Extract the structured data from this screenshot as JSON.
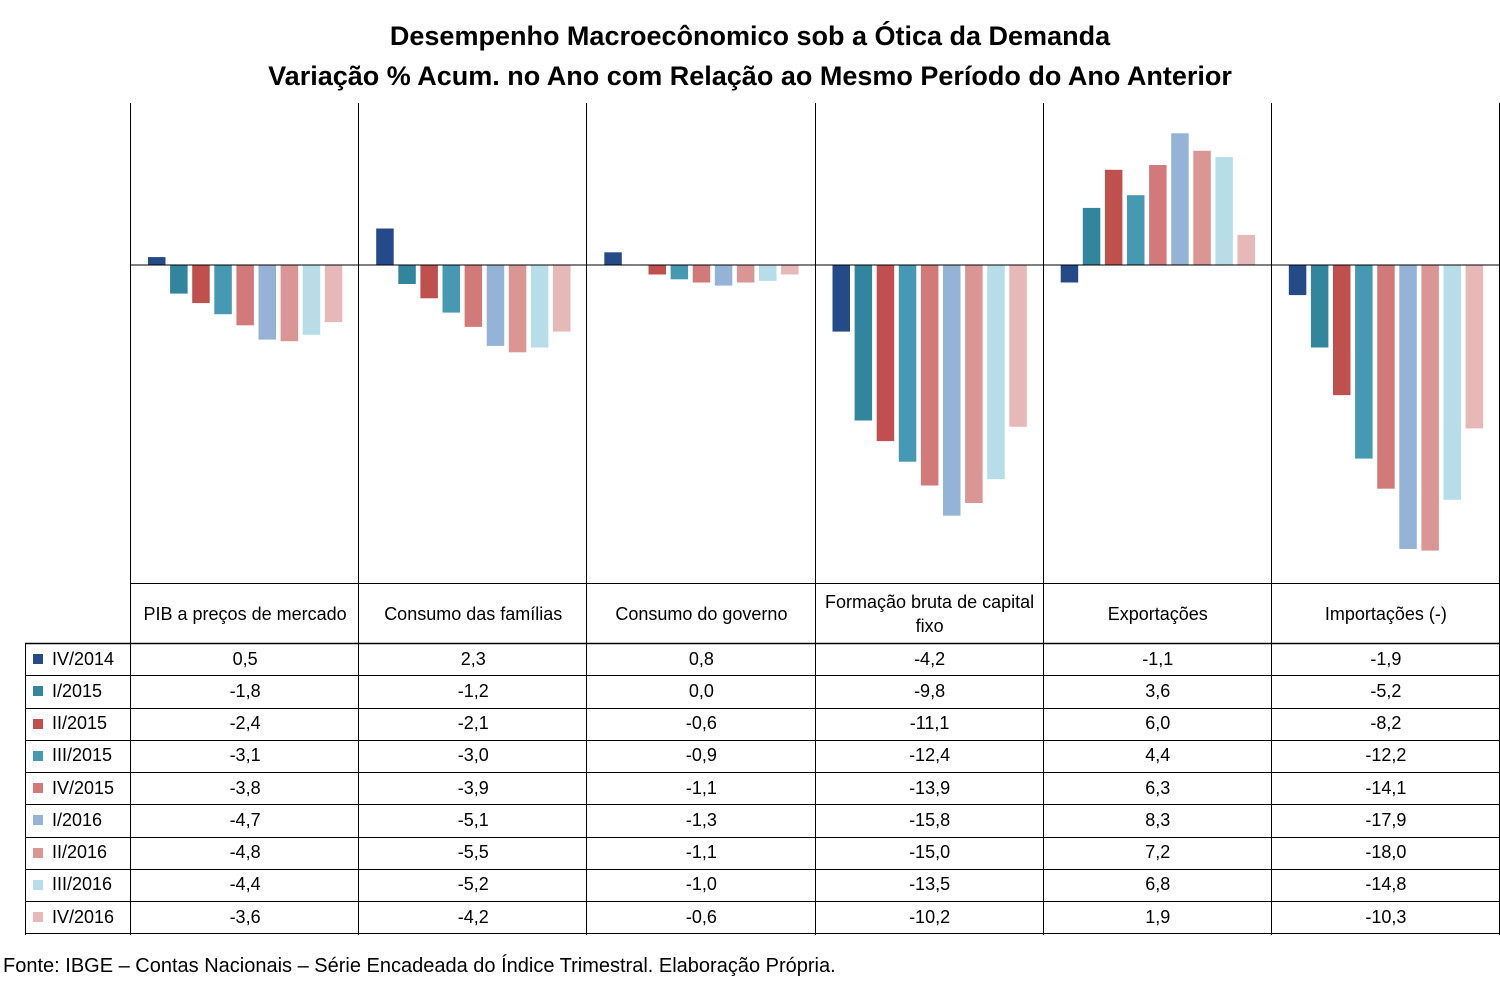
{
  "title": "Desempenho Macroecônomico sob a Ótica da Demanda",
  "subtitle": "Variação % Acum. no Ano com Relação ao Mesmo Período do Ano Anterior",
  "source": "Fonte: IBGE – Contas Nacionais – Série Encadeada do Índice Trimestral. Elaboração Própria.",
  "chart_data": {
    "type": "bar",
    "title": "Desempenho Macroecônomico sob a Ótica da Demanda",
    "subtitle": "Variação % Acum. no Ano com Relação ao Mesmo Período do Ano Anterior",
    "categories": [
      "PIB a preços de mercado",
      "Consumo das famílias",
      "Consumo do governo",
      "Formação bruta de capital fixo",
      "Exportações",
      "Importações (-)"
    ],
    "ylim": [
      -18.5,
      8.5
    ],
    "grid": false,
    "legend": "left (data table)",
    "series": [
      {
        "name": "IV/2014",
        "color": "#244b87",
        "values": [
          0.5,
          2.3,
          0.8,
          -4.2,
          -1.1,
          -1.9
        ],
        "labels": [
          "0,5",
          "2,3",
          "0,8",
          "-4,2",
          "-1,1",
          "-1,9"
        ]
      },
      {
        "name": "I/2015",
        "color": "#31859c",
        "values": [
          -1.8,
          -1.2,
          0.0,
          -9.8,
          3.6,
          -5.2
        ],
        "labels": [
          "-1,8",
          "-1,2",
          "0,0",
          "-9,8",
          "3,6",
          "-5,2"
        ]
      },
      {
        "name": "II/2015",
        "color": "#c0504d",
        "values": [
          -2.4,
          -2.1,
          -0.6,
          -11.1,
          6.0,
          -8.2
        ],
        "labels": [
          "-2,4",
          "-2,1",
          "-0,6",
          "-11,1",
          "6,0",
          "-8,2"
        ]
      },
      {
        "name": "III/2015",
        "color": "#4599b3",
        "values": [
          -3.1,
          -3.0,
          -0.9,
          -12.4,
          4.4,
          -12.2
        ],
        "labels": [
          "-3,1",
          "-3,0",
          "-0,9",
          "-12,4",
          "4,4",
          "-12,2"
        ]
      },
      {
        "name": "IV/2015",
        "color": "#d27a7a",
        "values": [
          -3.8,
          -3.9,
          -1.1,
          -13.9,
          6.3,
          -14.1
        ],
        "labels": [
          "-3,8",
          "-3,9",
          "-1,1",
          "-13,9",
          "6,3",
          "-14,1"
        ]
      },
      {
        "name": "I/2016",
        "color": "#95b3d7",
        "values": [
          -4.7,
          -5.1,
          -1.3,
          -15.8,
          8.3,
          -17.9
        ],
        "labels": [
          "-4,7",
          "-5,1",
          "-1,3",
          "-15,8",
          "8,3",
          "-17,9"
        ]
      },
      {
        "name": "II/2016",
        "color": "#da9694",
        "values": [
          -4.8,
          -5.5,
          -1.1,
          -15.0,
          7.2,
          -18.0
        ],
        "labels": [
          "-4,8",
          "-5,5",
          "-1,1",
          "-15,0",
          "7,2",
          "-18,0"
        ]
      },
      {
        "name": "III/2016",
        "color": "#b7dee8",
        "values": [
          -4.4,
          -5.2,
          -1.0,
          -13.5,
          6.8,
          -14.8
        ],
        "labels": [
          "-4,4",
          "-5,2",
          "-1,0",
          "-13,5",
          "6,8",
          "-14,8"
        ]
      },
      {
        "name": "IV/2016",
        "color": "#e6b8b7",
        "values": [
          -3.6,
          -4.2,
          -0.6,
          -10.2,
          1.9,
          -10.3
        ],
        "labels": [
          "-3,6",
          "-4,2",
          "-0,6",
          "-10,2",
          "1,9",
          "-10,3"
        ]
      }
    ]
  }
}
